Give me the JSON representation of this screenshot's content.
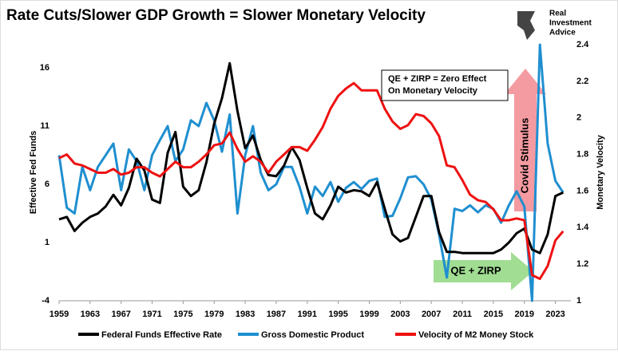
{
  "chart_data": {
    "type": "line",
    "title": "Rate Cuts/Slower GDP Growth = Slower Monetary Velocity",
    "logo": [
      "Real",
      "Investment",
      "Advice"
    ],
    "y_label": "Effective Fed Funds",
    "y2_label": "Monetary Velocity",
    "x": [
      1959,
      1960,
      1961,
      1962,
      1963,
      1964,
      1965,
      1966,
      1967,
      1968,
      1969,
      1970,
      1971,
      1972,
      1973,
      1974,
      1975,
      1976,
      1977,
      1978,
      1979,
      1980,
      1981,
      1982,
      1983,
      1984,
      1985,
      1986,
      1987,
      1988,
      1989,
      1990,
      1991,
      1992,
      1993,
      1994,
      1995,
      1996,
      1997,
      1998,
      1999,
      2000,
      2001,
      2002,
      2003,
      2004,
      2005,
      2006,
      2007,
      2008,
      2009,
      2010,
      2011,
      2012,
      2013,
      2014,
      2015,
      2016,
      2017,
      2018,
      2019,
      2020,
      2021,
      2022,
      2023,
      2024
    ],
    "xlim": [
      1959,
      2025
    ],
    "xticks": [
      1959,
      1963,
      1967,
      1971,
      1975,
      1979,
      1983,
      1987,
      1991,
      1995,
      1999,
      2003,
      2007,
      2011,
      2015,
      2019,
      2023
    ],
    "ylim": [
      -4,
      18
    ],
    "yticks": [
      -4,
      1,
      6,
      11,
      16
    ],
    "y2lim": [
      1,
      2.4
    ],
    "y2ticks": [
      1,
      1.2,
      1.4,
      1.6,
      1.8,
      2,
      2.2,
      2.4
    ],
    "legend": "bottom",
    "series": [
      {
        "name": "Federal Funds Effective Rate",
        "color": "#000000",
        "values": [
          3.0,
          3.2,
          2.0,
          2.7,
          3.2,
          3.5,
          4.1,
          5.1,
          4.2,
          5.7,
          8.2,
          7.2,
          4.7,
          4.4,
          8.7,
          10.5,
          5.8,
          5.0,
          5.5,
          7.9,
          11.2,
          13.4,
          16.4,
          12.3,
          9.1,
          10.2,
          8.1,
          6.8,
          6.7,
          7.6,
          9.2,
          8.1,
          5.7,
          3.5,
          3.0,
          4.2,
          5.8,
          5.3,
          5.5,
          5.4,
          5.0,
          6.2,
          3.9,
          1.7,
          1.1,
          1.4,
          3.2,
          5.0,
          5.0,
          1.9,
          0.2,
          0.2,
          0.1,
          0.1,
          0.1,
          0.1,
          0.1,
          0.4,
          1.0,
          1.8,
          2.2,
          0.4,
          0.1,
          1.7,
          5.0,
          5.3
        ]
      },
      {
        "name": "Gross Domestic Product",
        "color": "#1f8fd0",
        "values": [
          8.5,
          4,
          3.5,
          7.5,
          5.5,
          7.5,
          8.5,
          9.5,
          5.5,
          9,
          8,
          5.5,
          8.5,
          9.8,
          11,
          8,
          9,
          11.5,
          11,
          13,
          11.5,
          8.8,
          12,
          3.5,
          8.5,
          11,
          7,
          5.5,
          6,
          7.5,
          7.5,
          5.8,
          3.5,
          5.8,
          5,
          6.2,
          4.5,
          5.7,
          6.2,
          5.6,
          6.3,
          6.5,
          3.2,
          3.3,
          4.8,
          6.6,
          6.7,
          6,
          4.7,
          1.7,
          -2,
          3.9,
          3.7,
          4.2,
          3.6,
          4.2,
          3.9,
          2.7,
          4.2,
          5.4,
          4.1,
          -4,
          18,
          9.5,
          6.3,
          5.3
        ]
      },
      {
        "name": "Velocity of M2 Money Stock",
        "color": "#ee1111",
        "axis": "y2",
        "values": [
          1.78,
          1.8,
          1.75,
          1.74,
          1.72,
          1.7,
          1.7,
          1.72,
          1.69,
          1.7,
          1.73,
          1.73,
          1.7,
          1.68,
          1.72,
          1.76,
          1.73,
          1.73,
          1.76,
          1.8,
          1.85,
          1.86,
          1.92,
          1.83,
          1.76,
          1.79,
          1.76,
          1.7,
          1.76,
          1.8,
          1.84,
          1.84,
          1.82,
          1.88,
          1.95,
          2.05,
          2.12,
          2.16,
          2.19,
          2.15,
          2.15,
          2.15,
          2.05,
          1.98,
          1.94,
          1.96,
          2.02,
          2.01,
          1.97,
          1.9,
          1.74,
          1.73,
          1.66,
          1.58,
          1.55,
          1.54,
          1.5,
          1.44,
          1.44,
          1.45,
          1.44,
          1.14,
          1.12,
          1.19,
          1.33,
          1.38
        ]
      }
    ],
    "annotations": [
      {
        "text": [
          "QE + ZIRP = Zero Effect",
          "On Monetary Velocity"
        ]
      },
      {
        "text": "Covid Stimulus"
      },
      {
        "text": "QE + ZIRP"
      }
    ]
  }
}
